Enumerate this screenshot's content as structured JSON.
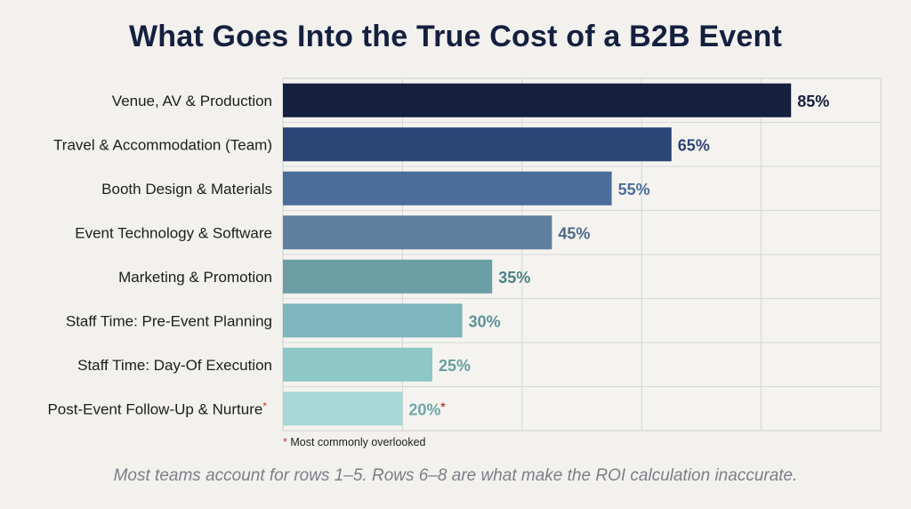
{
  "title": "What Goes Into the True Cost of a B2B Event",
  "chart_data": {
    "type": "bar",
    "orientation": "horizontal",
    "title": "What Goes Into the True Cost of a B2B Event",
    "categories": [
      "Venue, AV & Production",
      "Travel & Accommodation (Team)",
      "Booth Design & Materials",
      "Event Technology & Software",
      "Marketing & Promotion",
      "Staff Time: Pre-Event Planning",
      "Staff Time: Day-Of Execution",
      "Post-Event Follow-Up & Nurture"
    ],
    "values": [
      85,
      65,
      55,
      45,
      35,
      30,
      25,
      20
    ],
    "value_labels": [
      "85%",
      "65%",
      "55%",
      "45%",
      "35%",
      "30%",
      "25%",
      "20%"
    ],
    "flagged": [
      false,
      false,
      false,
      false,
      false,
      false,
      false,
      true
    ],
    "flag_marker": "*",
    "xlim": [
      0,
      100
    ],
    "grid": true,
    "xlabel": "",
    "ylabel": "",
    "bar_colors": [
      "#15203f",
      "#2c4577",
      "#4a6d9a",
      "#607f9e",
      "#6c9ea6",
      "#7fb5bc",
      "#8dc7c8",
      "#a6d8d8"
    ],
    "value_label_colors": [
      "#15203f",
      "#2c4577",
      "#4a6d9a",
      "#4e6a88",
      "#4e8087",
      "#5e9399",
      "#679ea2",
      "#6fa8aa"
    ],
    "flag_color": "#c0392b"
  },
  "footnote": {
    "marker": "*",
    "text": "Most commonly overlooked"
  },
  "caption": "Most teams account for rows 1–5. Rows 6–8 are what make the ROI calculation inaccurate."
}
